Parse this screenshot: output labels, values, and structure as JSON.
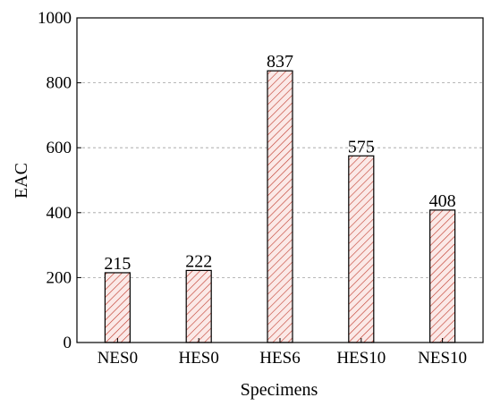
{
  "chart_data": {
    "type": "bar",
    "categories": [
      "NES0",
      "HES0",
      "HES6",
      "HES10",
      "NES10"
    ],
    "values": [
      215,
      222,
      837,
      575,
      408
    ],
    "data_labels": [
      "215",
      "222",
      "837",
      "575",
      "408"
    ],
    "xlabel": "Specimens",
    "ylabel": "EAC",
    "ylim": [
      0,
      1000
    ],
    "yticks": [
      0,
      200,
      400,
      600,
      800,
      1000
    ],
    "ytick_labels": [
      "0",
      "200",
      "400",
      "600",
      "800",
      "1000"
    ],
    "grid": "horizontal dashed",
    "legend": "none",
    "bar_fill": "hatched",
    "colors": {
      "bar_edge": "#000000",
      "hatch": "#c0392b",
      "bar_background": "#fbe9e7",
      "grid": "#a0a0a0",
      "axis": "#000000"
    }
  }
}
